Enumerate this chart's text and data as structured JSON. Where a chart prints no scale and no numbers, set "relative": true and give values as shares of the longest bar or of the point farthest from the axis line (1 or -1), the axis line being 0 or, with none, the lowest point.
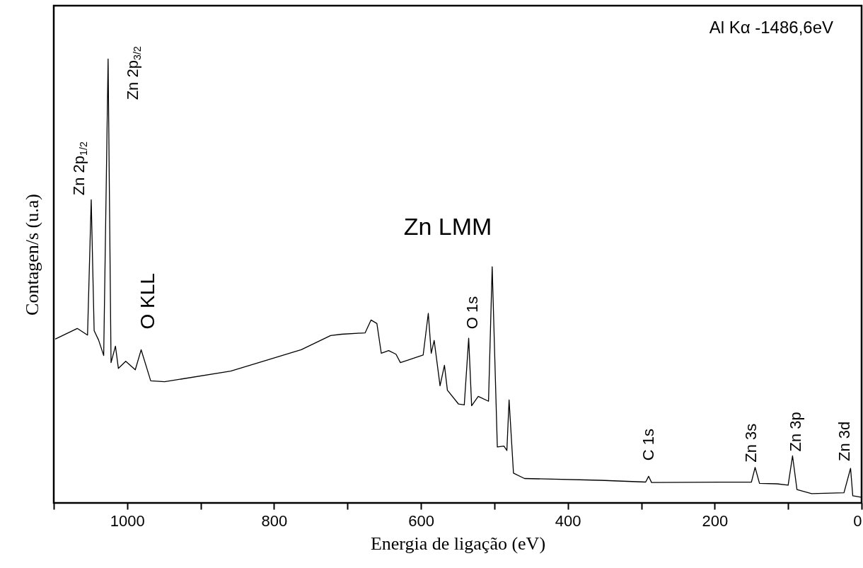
{
  "chart_data": {
    "type": "line",
    "relative": true,
    "xlabel": "Energia de ligação (eV)",
    "ylabel": "Contagen/s (u.a)",
    "xlim": [
      1100,
      0
    ],
    "xticks": [
      {
        "value": 1100,
        "label": null
      },
      1000,
      {
        "value": 900,
        "label": null
      },
      800,
      {
        "value": 700,
        "label": null
      },
      600,
      {
        "value": 500,
        "label": null
      },
      400,
      {
        "value": 300,
        "label": null
      },
      200,
      {
        "value": 100,
        "label": null
      },
      0
    ],
    "grid": false,
    "series": [
      {
        "color": "#000000",
        "x": [
          1098,
          1068,
          1054,
          1049,
          1045,
          1039,
          1032,
          1026,
          1022,
          1016,
          1012,
          1002,
          989,
          981,
          968,
          949,
          859,
          763,
          723,
          708,
          676,
          668,
          660,
          654,
          644,
          634,
          628,
          597,
          590,
          586,
          582,
          574,
          568,
          564,
          549,
          541,
          535,
          531,
          522,
          508,
          503,
          496,
          487,
          483,
          480,
          474,
          459,
          356,
          294,
          290,
          286,
          150,
          145,
          139,
          115,
          100,
          94,
          88,
          68,
          24,
          15,
          12,
          1
        ],
        "values": [
          0.369,
          0.393,
          0.378,
          0.683,
          0.388,
          0.367,
          0.332,
          1.0,
          0.316,
          0.353,
          0.303,
          0.319,
          0.3,
          0.345,
          0.275,
          0.273,
          0.297,
          0.345,
          0.377,
          0.38,
          0.383,
          0.412,
          0.404,
          0.337,
          0.343,
          0.335,
          0.316,
          0.333,
          0.427,
          0.337,
          0.366,
          0.264,
          0.31,
          0.254,
          0.223,
          0.221,
          0.371,
          0.219,
          0.24,
          0.229,
          0.532,
          0.126,
          0.128,
          0.118,
          0.232,
          0.067,
          0.055,
          0.051,
          0.047,
          0.06,
          0.046,
          0.047,
          0.08,
          0.044,
          0.043,
          0.04,
          0.106,
          0.03,
          0.021,
          0.023,
          0.078,
          0.016,
          0.013
        ]
      }
    ],
    "annotations": [
      {
        "text": "Zn 2p$_{1/2}$",
        "x": 1049,
        "y": 0.683
      },
      {
        "text": "Zn 2p$_{3/2}$",
        "x": 1026,
        "y": 1.0
      },
      {
        "text": "O KLL",
        "x": 981,
        "y": 0.345
      },
      "Zn LMM",
      {
        "text": "O 1s",
        "x": 535,
        "y": 0.371
      },
      {
        "text": "C 1s",
        "x": 290,
        "y": 0.06
      },
      {
        "text": "Zn 3s",
        "x": 145,
        "y": 0.08
      },
      {
        "text": "Zn 3p",
        "x": 94,
        "y": 0.106
      },
      {
        "text": "Zn 3d",
        "x": 15,
        "y": 0.078
      },
      "Al Kα -1486,6eV"
    ]
  }
}
